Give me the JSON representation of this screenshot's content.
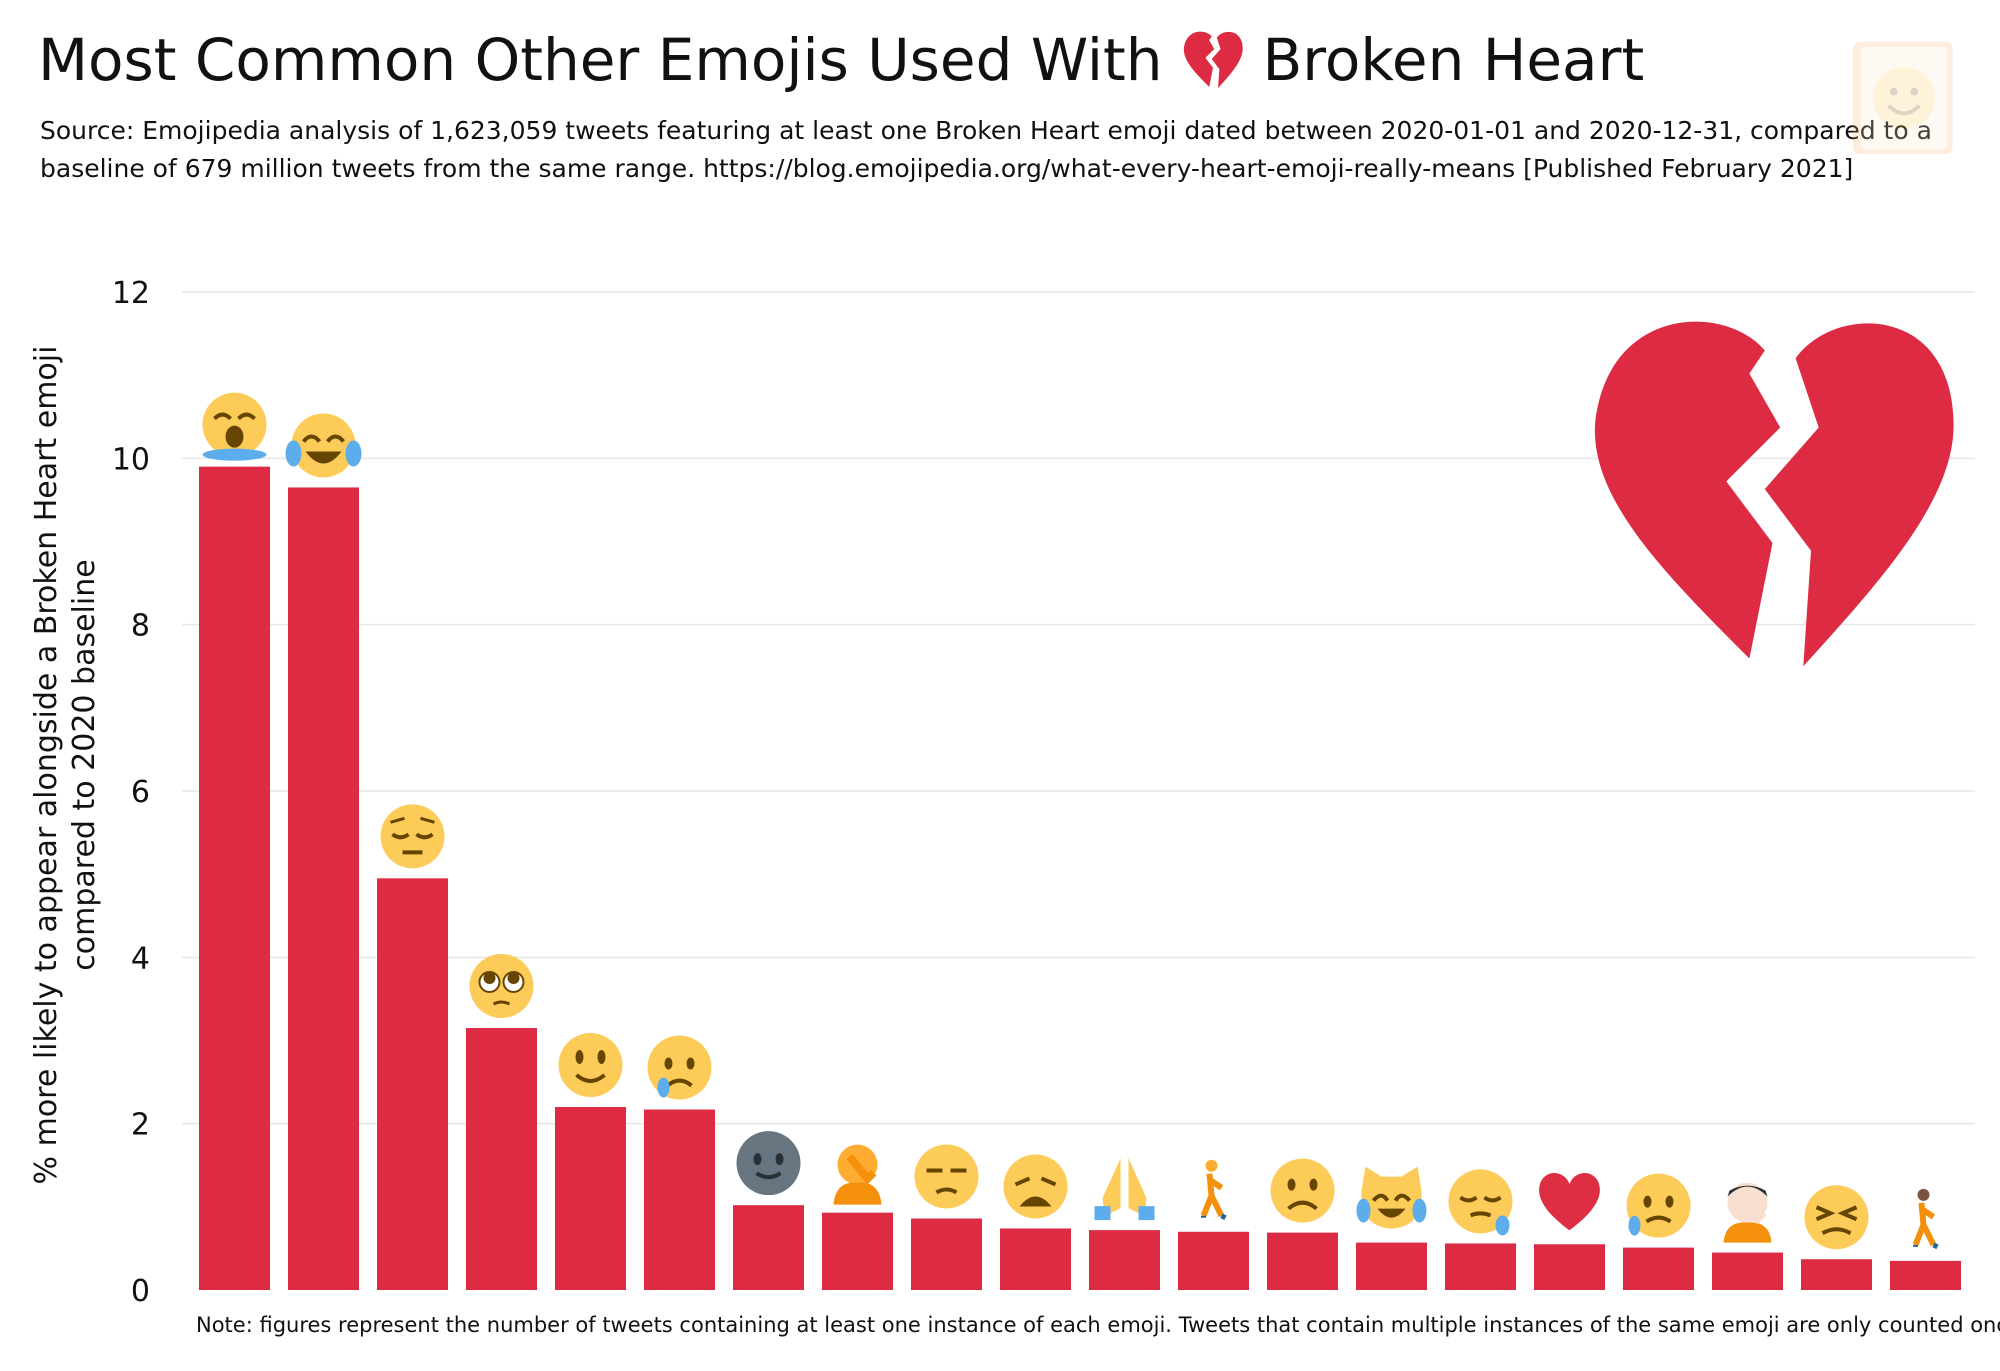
{
  "title": {
    "before": "Most Common Other Emojis Used With",
    "after": "Broken Heart"
  },
  "subtitle": "Source: Emojipedia analysis of 1,623,059 tweets featuring at least one Broken Heart emoji dated between 2020-01-01 and 2020-12-31, compared to a baseline of 679 million tweets from the same range. https://blog.emojipedia.org/what-every-heart-emoji-really-means [Published February 2021]",
  "note": "Note: figures represent the number of tweets containing at least one instance of each emoji. Tweets that contain multiple instances of the same emoji are only counted once.",
  "colors": {
    "bar": "#dd2b44",
    "grid": "#e6e6e6",
    "emoji_face": "#fdcb58",
    "emoji_dark": "#664500",
    "tear": "#5dadec"
  },
  "chart_data": {
    "type": "bar",
    "title": "Most Common Other Emojis Used With 💔 Broken Heart",
    "ylabel_lines": [
      "% more likely to appear alongside a Broken Heart emoji",
      "compared to 2020 baseline"
    ],
    "xlabel": "",
    "ylim": [
      0,
      12
    ],
    "yticks": [
      0,
      2,
      4,
      6,
      8,
      10,
      12
    ],
    "grid": true,
    "categories": [
      "loudly-crying-face",
      "face-with-tears-of-joy",
      "pensive-face",
      "face-holding-back-tears",
      "slightly-smiling-face",
      "crying-face",
      "new-moon-face",
      "person-facepalming",
      "unamused-face",
      "weary-face",
      "folded-hands",
      "person-walking",
      "frowning-face",
      "cat-with-tears-of-joy",
      "sleepy-face",
      "red-heart",
      "sad-but-relieved-face",
      "person-facepalming-light",
      "tired-face",
      "person-walking-dark"
    ],
    "values": [
      9.9,
      9.65,
      4.95,
      3.15,
      2.2,
      2.17,
      1.02,
      0.93,
      0.86,
      0.74,
      0.72,
      0.7,
      0.69,
      0.57,
      0.56,
      0.55,
      0.51,
      0.45,
      0.37,
      0.35
    ]
  }
}
